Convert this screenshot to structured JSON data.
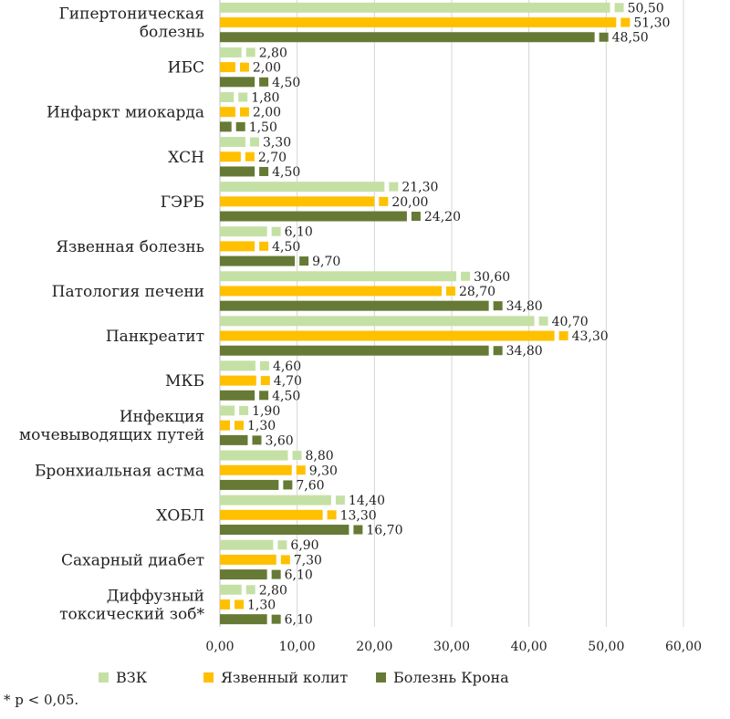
{
  "chart_data": {
    "type": "bar",
    "orientation": "horizontal",
    "categories": [
      [
        "Гипертоническая",
        "болезнь"
      ],
      [
        "ИБС"
      ],
      [
        "Инфаркт миокарда"
      ],
      [
        "ХСН"
      ],
      [
        "ГЭРБ"
      ],
      [
        "Язвенная болезнь"
      ],
      [
        "Патология печени"
      ],
      [
        "Панкреатит"
      ],
      [
        "МКБ"
      ],
      [
        "Инфекция",
        "мочевыводящих путей"
      ],
      [
        "Бронхиальная астма"
      ],
      [
        "ХОБЛ"
      ],
      [
        "Сахарный диабет"
      ],
      [
        "Диффузный",
        "токсический зоб*"
      ]
    ],
    "series": [
      {
        "name": "ВЗК",
        "color": "#c5e0a5",
        "values": [
          50.5,
          2.8,
          1.8,
          3.3,
          21.3,
          6.1,
          30.6,
          40.7,
          4.6,
          1.9,
          8.8,
          14.4,
          6.9,
          2.8
        ],
        "labels": [
          "50,50",
          "2,80",
          "1,80",
          "3,30",
          "21,30",
          "6,10",
          "30,60",
          "40,70",
          "4,60",
          "1,90",
          "8,80",
          "14,40",
          "6,90",
          "2,80"
        ]
      },
      {
        "name": "Язвенный колит",
        "color": "#ffc000",
        "values": [
          51.3,
          2.0,
          2.0,
          2.7,
          20.0,
          4.5,
          28.7,
          43.3,
          4.7,
          1.3,
          9.3,
          13.3,
          7.3,
          1.3
        ],
        "labels": [
          "51,30",
          "2,00",
          "2,00",
          "2,70",
          "20,00",
          "4,50",
          "28,70",
          "43,30",
          "4,70",
          "1,30",
          "9,30",
          "13,30",
          "7,30",
          "1,30"
        ]
      },
      {
        "name": "Болезнь Крона",
        "color": "#667a35",
        "values": [
          48.5,
          4.5,
          1.5,
          4.5,
          24.2,
          9.7,
          34.8,
          34.8,
          4.5,
          3.6,
          7.6,
          16.7,
          6.1,
          6.1
        ],
        "labels": [
          "48,50",
          "4,50",
          "1,50",
          "4,50",
          "24,20",
          "9,70",
          "34,80",
          "34,80",
          "4,50",
          "3,60",
          "7,60",
          "16,70",
          "6,10",
          "6,10"
        ]
      }
    ],
    "xlim": [
      0,
      60
    ],
    "xticks": [
      "0,00",
      "10,00",
      "20,00",
      "30,00",
      "40,00",
      "50,00",
      "60,00"
    ],
    "grid": true,
    "legend_position": "bottom"
  },
  "footnote": "* p < 0,05."
}
